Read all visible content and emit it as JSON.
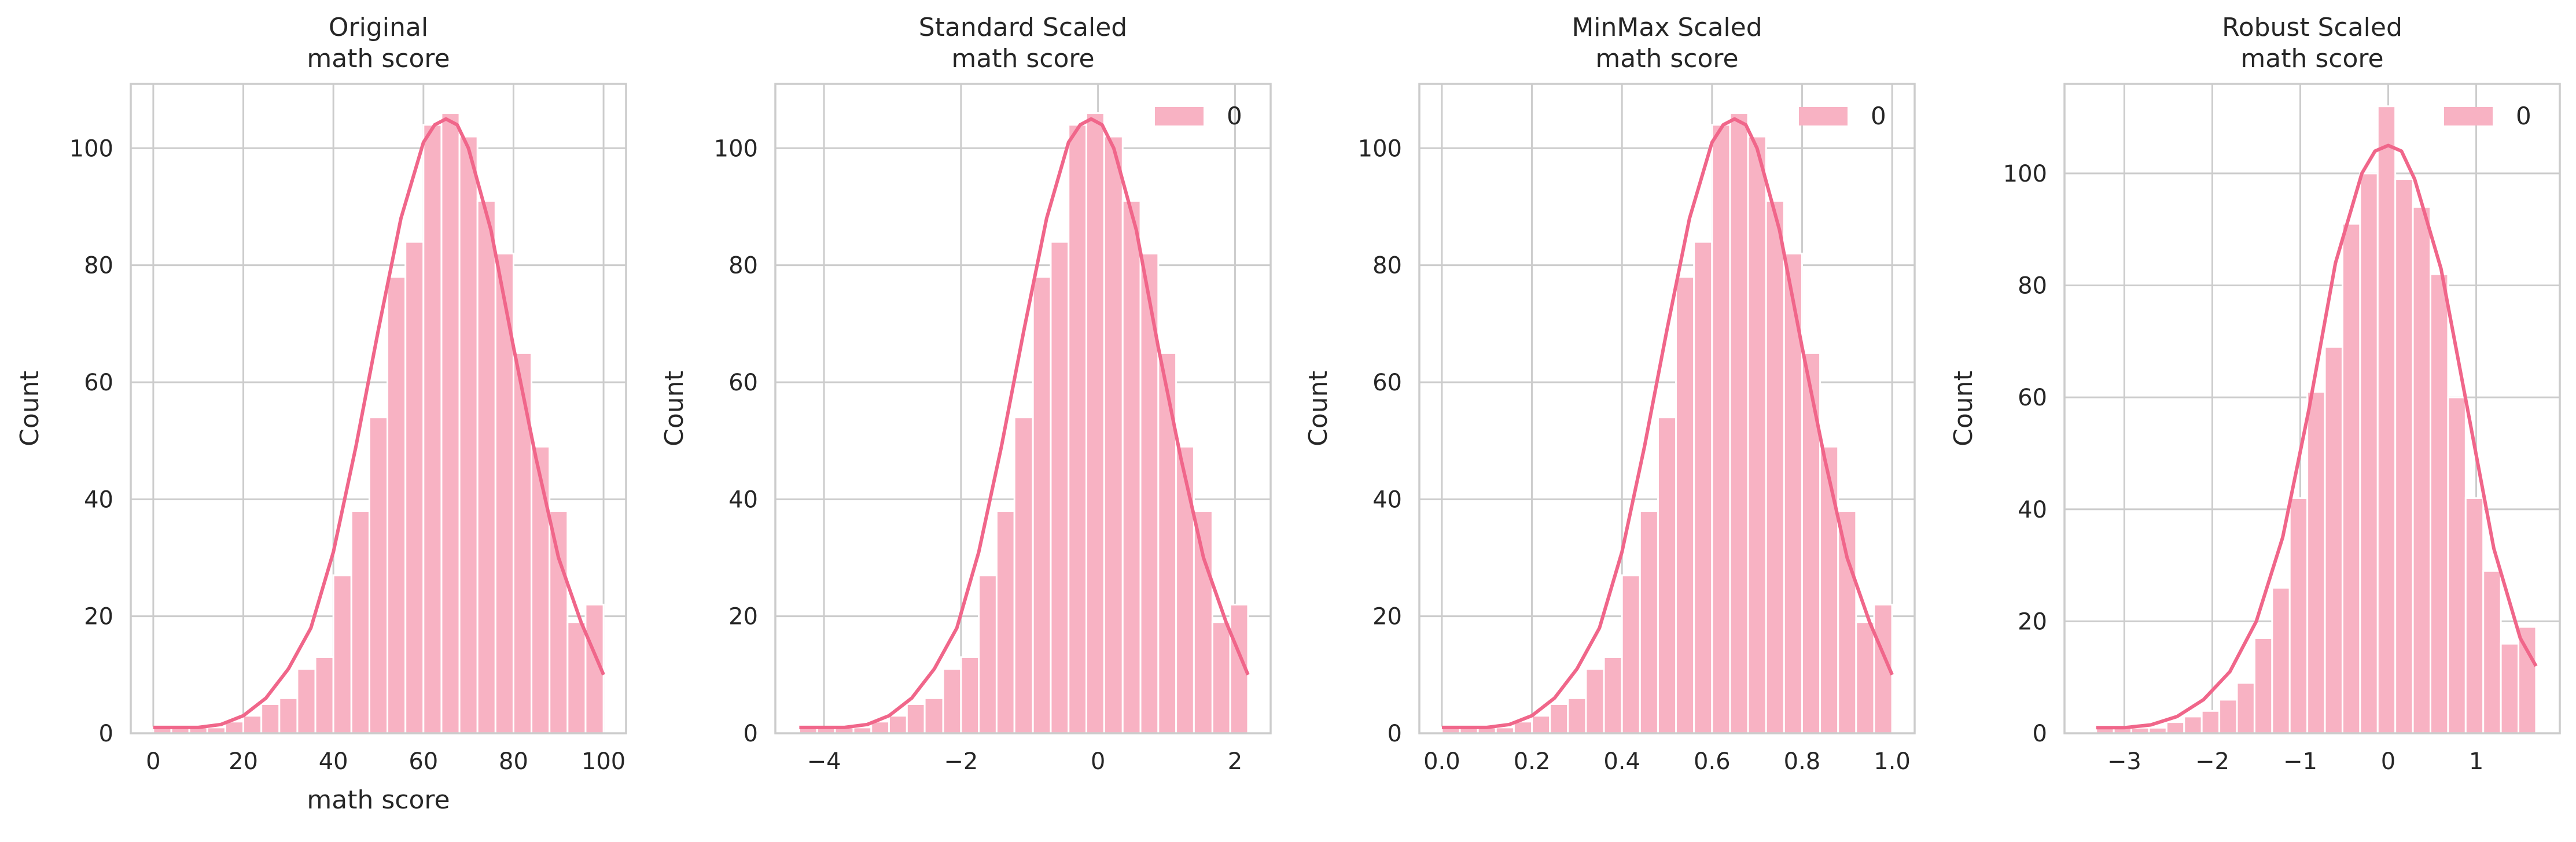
{
  "style": {
    "bar_color": "#f8b2c3",
    "line_color": "#f0668a",
    "grid_color": "#cccccc",
    "spine_color": "#cccccc",
    "text_color": "#262626",
    "background": "#ffffff"
  },
  "chart_data": [
    {
      "type": "bar",
      "title": "Original\nmath score",
      "xlabel": "math score",
      "ylabel": "Count",
      "xlim": [
        -5,
        105
      ],
      "ylim": [
        0,
        111
      ],
      "xticks": [
        0,
        20,
        40,
        60,
        80,
        100
      ],
      "xtick_labels": [
        "0",
        "20",
        "40",
        "60",
        "80",
        "100"
      ],
      "yticks": [
        0,
        20,
        40,
        60,
        80,
        100
      ],
      "ytick_labels": [
        "0",
        "20",
        "40",
        "60",
        "80",
        "100"
      ],
      "grid": true,
      "legend": null,
      "bin_edges": [
        0,
        4,
        8,
        12,
        16,
        20,
        24,
        28,
        32,
        36,
        40,
        44,
        48,
        52,
        56,
        60,
        64,
        68,
        72,
        76,
        80,
        84,
        88,
        92,
        96,
        100
      ],
      "values": [
        1,
        1,
        1,
        1,
        2,
        3,
        5,
        6,
        11,
        13,
        27,
        38,
        54,
        78,
        84,
        104,
        106,
        102,
        91,
        82,
        65,
        49,
        38,
        19,
        22
      ],
      "kde": {
        "x": [
          0,
          5,
          10,
          15,
          20,
          25,
          30,
          35,
          40,
          45,
          50,
          55,
          60,
          62.5,
          65,
          67.5,
          70,
          75,
          80,
          85,
          90,
          95,
          100
        ],
        "y": [
          1,
          1,
          1,
          1.5,
          3,
          6,
          11,
          18,
          31,
          49,
          69,
          88,
          101,
          104,
          105,
          104,
          100,
          86,
          66,
          47,
          30,
          19,
          10
        ]
      }
    },
    {
      "type": "bar",
      "title": "Standard Scaled\nmath score",
      "xlabel": "",
      "ylabel": "Count",
      "xlim": [
        -4.71,
        2.52
      ],
      "ylim": [
        0,
        111
      ],
      "xticks": [
        -4,
        -2,
        0,
        2
      ],
      "xtick_labels": [
        "−4",
        "−2",
        "0",
        "2"
      ],
      "yticks": [
        0,
        20,
        40,
        60,
        80,
        100
      ],
      "ytick_labels": [
        "0",
        "20",
        "40",
        "60",
        "80",
        "100"
      ],
      "grid": true,
      "legend": {
        "labels": [
          "0"
        ],
        "loc": "upper right"
      },
      "bin_edges": [
        -4.36,
        -4.1,
        -3.84,
        -3.57,
        -3.31,
        -3.05,
        -2.79,
        -2.53,
        -2.26,
        -2.0,
        -1.74,
        -1.48,
        -1.22,
        -0.95,
        -0.69,
        -0.43,
        -0.17,
        0.09,
        0.36,
        0.62,
        0.88,
        1.14,
        1.4,
        1.67,
        1.93,
        2.19
      ],
      "values": [
        1,
        1,
        1,
        1,
        2,
        3,
        5,
        6,
        11,
        13,
        27,
        38,
        54,
        78,
        84,
        104,
        106,
        102,
        91,
        82,
        65,
        49,
        38,
        19,
        22
      ],
      "kde": {
        "x": [
          -4.36,
          -4.03,
          -3.7,
          -3.37,
          -3.05,
          -2.72,
          -2.39,
          -2.06,
          -1.74,
          -1.41,
          -1.08,
          -0.75,
          -0.43,
          -0.26,
          -0.1,
          0.06,
          0.23,
          0.56,
          0.88,
          1.21,
          1.54,
          1.87,
          2.19
        ],
        "y": [
          1,
          1,
          1,
          1.5,
          3,
          6,
          11,
          18,
          31,
          49,
          69,
          88,
          101,
          104,
          105,
          104,
          100,
          86,
          66,
          47,
          30,
          19,
          10
        ]
      }
    },
    {
      "type": "bar",
      "title": "MinMax Scaled\nmath score",
      "xlabel": "",
      "ylabel": "Count",
      "xlim": [
        -0.05,
        1.05
      ],
      "ylim": [
        0,
        111
      ],
      "xticks": [
        0.0,
        0.2,
        0.4,
        0.6,
        0.8,
        1.0
      ],
      "xtick_labels": [
        "0.0",
        "0.2",
        "0.4",
        "0.6",
        "0.8",
        "1.0"
      ],
      "yticks": [
        0,
        20,
        40,
        60,
        80,
        100
      ],
      "ytick_labels": [
        "0",
        "20",
        "40",
        "60",
        "80",
        "100"
      ],
      "grid": true,
      "legend": {
        "labels": [
          "0"
        ],
        "loc": "upper right"
      },
      "bin_edges": [
        0.0,
        0.04,
        0.08,
        0.12,
        0.16,
        0.2,
        0.24,
        0.28,
        0.32,
        0.36,
        0.4,
        0.44,
        0.48,
        0.52,
        0.56,
        0.6,
        0.64,
        0.68,
        0.72,
        0.76,
        0.8,
        0.84,
        0.88,
        0.92,
        0.96,
        1.0
      ],
      "values": [
        1,
        1,
        1,
        1,
        2,
        3,
        5,
        6,
        11,
        13,
        27,
        38,
        54,
        78,
        84,
        104,
        106,
        102,
        91,
        82,
        65,
        49,
        38,
        19,
        22
      ],
      "kde": {
        "x": [
          0,
          0.05,
          0.1,
          0.15,
          0.2,
          0.25,
          0.3,
          0.35,
          0.4,
          0.45,
          0.5,
          0.55,
          0.6,
          0.625,
          0.65,
          0.675,
          0.7,
          0.75,
          0.8,
          0.85,
          0.9,
          0.95,
          1.0
        ],
        "y": [
          1,
          1,
          1,
          1.5,
          3,
          6,
          11,
          18,
          31,
          49,
          69,
          88,
          101,
          104,
          105,
          104,
          100,
          86,
          66,
          47,
          30,
          19,
          10
        ]
      }
    },
    {
      "type": "bar",
      "title": "Robust Scaled\nmath score",
      "xlabel": "",
      "ylabel": "Count",
      "xlim": [
        -3.68,
        1.95
      ],
      "ylim": [
        0,
        116
      ],
      "xticks": [
        -3,
        -2,
        -1,
        0,
        1
      ],
      "xtick_labels": [
        "−3",
        "−2",
        "−1",
        "0",
        "1"
      ],
      "yticks": [
        0,
        20,
        40,
        60,
        80,
        100
      ],
      "ytick_labels": [
        "0",
        "20",
        "40",
        "60",
        "80",
        "100"
      ],
      "grid": true,
      "legend": {
        "labels": [
          "0"
        ],
        "loc": "upper right"
      },
      "bin_edges": [
        -3.32,
        -3.12,
        -2.92,
        -2.72,
        -2.52,
        -2.32,
        -2.12,
        -1.92,
        -1.72,
        -1.52,
        -1.32,
        -1.12,
        -0.92,
        -0.72,
        -0.52,
        -0.32,
        -0.12,
        0.08,
        0.28,
        0.48,
        0.68,
        0.88,
        1.08,
        1.28,
        1.48,
        1.68
      ],
      "values": [
        1,
        1,
        1,
        1,
        2,
        3,
        4,
        6,
        9,
        17,
        26,
        42,
        61,
        69,
        91,
        100,
        112,
        99,
        94,
        82,
        60,
        42,
        29,
        16,
        19
      ],
      "kde": {
        "x": [
          -3.32,
          -3.0,
          -2.7,
          -2.4,
          -2.1,
          -1.8,
          -1.5,
          -1.2,
          -0.9,
          -0.6,
          -0.3,
          -0.15,
          0.0,
          0.15,
          0.3,
          0.6,
          0.9,
          1.2,
          1.5,
          1.68
        ],
        "y": [
          1,
          1,
          1.5,
          3,
          6,
          11,
          20,
          35,
          58,
          84,
          100,
          104,
          105,
          104,
          99,
          83,
          58,
          33,
          17,
          12
        ]
      }
    }
  ]
}
